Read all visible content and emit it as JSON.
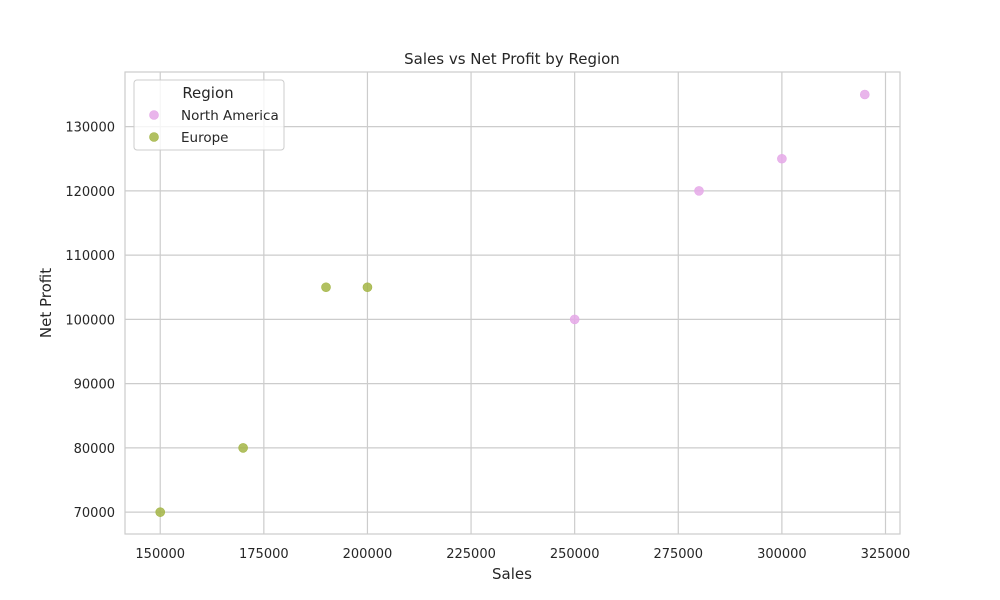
{
  "chart_data": {
    "type": "scatter",
    "title": "Sales vs Net Profit by Region",
    "xlabel": "Sales",
    "ylabel": "Net Profit",
    "xlim": [
      141500,
      328500
    ],
    "ylim": [
      66600,
      138500
    ],
    "xticks": [
      150000,
      175000,
      200000,
      225000,
      250000,
      275000,
      300000,
      325000
    ],
    "yticks": [
      70000,
      80000,
      90000,
      100000,
      110000,
      120000,
      130000
    ],
    "xtick_labels": [
      "150000",
      "175000",
      "200000",
      "225000",
      "250000",
      "275000",
      "300000",
      "325000"
    ],
    "ytick_labels": [
      "70000",
      "80000",
      "90000",
      "100000",
      "110000",
      "120000",
      "130000"
    ],
    "grid": true,
    "legend": {
      "title": "Region",
      "position": "top-left"
    },
    "series": [
      {
        "name": "North America",
        "color": "#e5a8e8",
        "points": [
          {
            "x": 250000,
            "y": 100000
          },
          {
            "x": 280000,
            "y": 120000
          },
          {
            "x": 300000,
            "y": 125000
          },
          {
            "x": 320000,
            "y": 135000
          }
        ]
      },
      {
        "name": "Europe",
        "color": "#a3b545",
        "points": [
          {
            "x": 150000,
            "y": 70000
          },
          {
            "x": 170000,
            "y": 80000
          },
          {
            "x": 190000,
            "y": 105000
          },
          {
            "x": 200000,
            "y": 105000
          }
        ]
      }
    ]
  }
}
